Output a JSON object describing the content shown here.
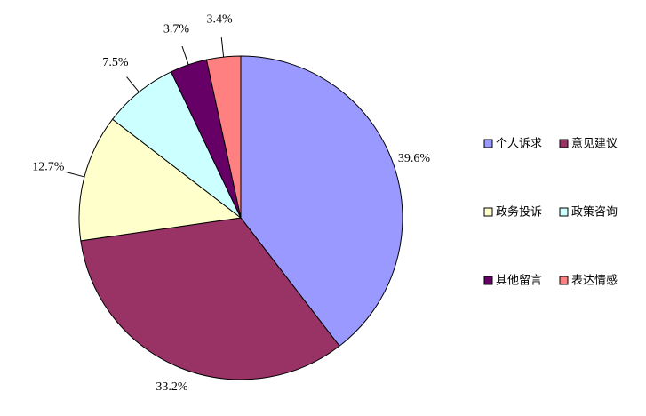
{
  "chart_data": {
    "type": "pie",
    "categories": [
      "个人诉求",
      "意见建议",
      "政务投诉",
      "政策咨询",
      "其他留言",
      "表达情感"
    ],
    "values": [
      39.6,
      33.2,
      12.7,
      7.5,
      3.7,
      3.4
    ],
    "value_labels": [
      "39.6%",
      "33.2%",
      "12.7%",
      "7.5%",
      "3.7%",
      "3.4%"
    ],
    "colors": [
      "#9999ff",
      "#993366",
      "#ffffcc",
      "#ccffff",
      "#660066",
      "#ff8080"
    ],
    "legend": "right"
  }
}
